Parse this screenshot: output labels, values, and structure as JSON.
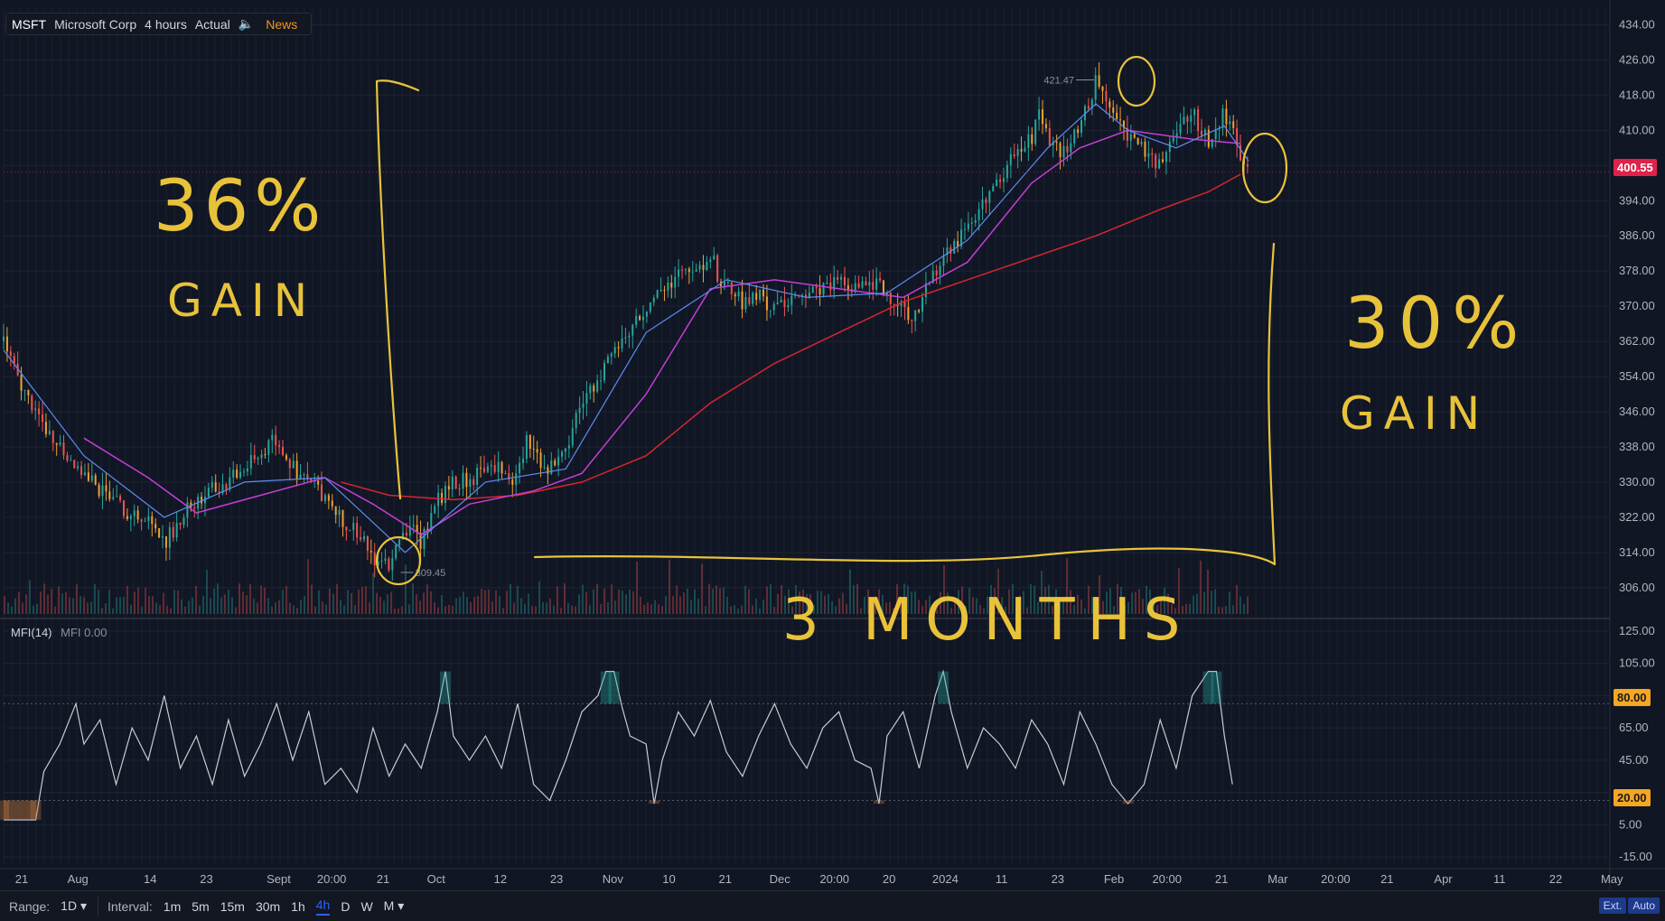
{
  "header": {
    "symbol": "MSFT",
    "company": "Microsoft Corp",
    "interval": "4 hours",
    "mode": "Actual",
    "news": "News"
  },
  "indicator": {
    "name": "MFI(14)",
    "value_label": "MFI 0.00"
  },
  "price_tags": {
    "last": "400.55",
    "mfi_upper": "80.00",
    "mfi_lower": "20.00"
  },
  "annotations_text": {
    "left_pct": "36%",
    "left_gain": "GAIN",
    "right_pct": "30%",
    "right_gain": "GAIN",
    "duration": "3 MONTHS"
  },
  "bottom_bar": {
    "range_label": "Range:",
    "range_value": "1D",
    "interval_label": "Interval:",
    "intervals": [
      "1m",
      "5m",
      "15m",
      "30m",
      "1h",
      "4h",
      "D",
      "W",
      "M"
    ],
    "active_interval": "4h",
    "ext": "Ext.",
    "auto": "Auto"
  },
  "colors": {
    "background": "#111624",
    "grid": "#1e2433",
    "ma_fast": "#5b8def",
    "ma_mid": "#c43fd6",
    "ma_slow": "#d7262f",
    "annotation": "#e8c33a",
    "last_price": "#e0224b",
    "mfi_line": "#c9ccd3",
    "mfi_tag": "#f5a623"
  },
  "chart_data": [
    {
      "type": "line",
      "title": "",
      "series_label": "MSFT 4 hours (candlesticks)",
      "y_ticks": [
        434,
        426,
        418,
        410,
        402,
        394,
        386,
        378,
        370,
        362,
        354,
        346,
        338,
        330,
        322,
        314,
        306
      ],
      "y_tick_labels": [
        "434.00",
        "426.00",
        "418.00",
        "410.00",
        "",
        "394.00",
        "386.00",
        "378.00",
        "370.00",
        "362.00",
        "354.00",
        "346.00",
        "338.00",
        "330.00",
        "322.00",
        "314.00",
        "306.00"
      ],
      "ylim": [
        300,
        438
      ],
      "x_tick_labels": [
        "21",
        "Aug",
        "14",
        "23",
        "Sept",
        "20:00",
        "21",
        "Oct",
        "12",
        "23",
        "Nov",
        "10",
        "21",
        "Dec",
        "20:00",
        "20",
        "2024",
        "11",
        "23",
        "Feb",
        "20:00",
        "21",
        "Mar",
        "20:00",
        "21",
        "Apr",
        "11",
        "22",
        "May"
      ],
      "x_tick_pos": [
        0,
        0.035,
        0.08,
        0.115,
        0.16,
        0.193,
        0.225,
        0.258,
        0.298,
        0.333,
        0.368,
        0.403,
        0.438,
        0.472,
        0.506,
        0.54,
        0.575,
        0.61,
        0.645,
        0.68,
        0.713,
        0.747,
        0.782,
        0.818,
        0.85,
        0.885,
        0.92,
        0.955,
        0.99
      ],
      "price_path": [
        [
          0.0,
          362
        ],
        [
          0.01,
          352
        ],
        [
          0.02,
          346
        ],
        [
          0.03,
          340
        ],
        [
          0.04,
          336
        ],
        [
          0.05,
          332
        ],
        [
          0.06,
          328
        ],
        [
          0.07,
          325
        ],
        [
          0.08,
          323
        ],
        [
          0.09,
          321
        ],
        [
          0.1,
          316
        ],
        [
          0.11,
          322
        ],
        [
          0.12,
          326
        ],
        [
          0.13,
          328
        ],
        [
          0.14,
          330
        ],
        [
          0.15,
          333
        ],
        [
          0.16,
          336
        ],
        [
          0.17,
          340
        ],
        [
          0.18,
          333
        ],
        [
          0.19,
          330
        ],
        [
          0.2,
          327
        ],
        [
          0.21,
          322
        ],
        [
          0.22,
          318
        ],
        [
          0.23,
          313
        ],
        [
          0.235,
          311
        ],
        [
          0.24,
          312
        ],
        [
          0.25,
          318
        ],
        [
          0.255,
          322
        ],
        [
          0.26,
          316
        ],
        [
          0.265,
          322
        ],
        [
          0.27,
          326
        ],
        [
          0.28,
          330
        ],
        [
          0.29,
          331
        ],
        [
          0.3,
          332
        ],
        [
          0.31,
          333
        ],
        [
          0.32,
          330
        ],
        [
          0.325,
          340
        ],
        [
          0.33,
          337
        ],
        [
          0.34,
          333
        ],
        [
          0.35,
          336
        ],
        [
          0.355,
          344
        ],
        [
          0.36,
          348
        ],
        [
          0.37,
          354
        ],
        [
          0.38,
          360
        ],
        [
          0.39,
          364
        ],
        [
          0.4,
          370
        ],
        [
          0.41,
          374
        ],
        [
          0.42,
          377
        ],
        [
          0.43,
          378
        ],
        [
          0.44,
          382
        ],
        [
          0.445,
          377
        ],
        [
          0.45,
          374
        ],
        [
          0.46,
          371
        ],
        [
          0.47,
          372
        ],
        [
          0.48,
          370
        ],
        [
          0.49,
          371
        ],
        [
          0.5,
          373
        ],
        [
          0.51,
          374
        ],
        [
          0.52,
          375
        ],
        [
          0.53,
          374
        ],
        [
          0.54,
          376
        ],
        [
          0.55,
          373
        ],
        [
          0.56,
          370
        ],
        [
          0.565,
          368
        ],
        [
          0.57,
          370
        ],
        [
          0.58,
          378
        ],
        [
          0.59,
          384
        ],
        [
          0.6,
          388
        ],
        [
          0.61,
          394
        ],
        [
          0.62,
          398
        ],
        [
          0.63,
          405
        ],
        [
          0.64,
          408
        ],
        [
          0.645,
          416
        ],
        [
          0.65,
          408
        ],
        [
          0.66,
          405
        ],
        [
          0.67,
          410
        ],
        [
          0.675,
          416
        ],
        [
          0.68,
          421
        ],
        [
          0.69,
          414
        ],
        [
          0.7,
          409
        ],
        [
          0.71,
          405
        ],
        [
          0.72,
          402
        ],
        [
          0.73,
          410
        ],
        [
          0.74,
          414
        ],
        [
          0.745,
          410
        ],
        [
          0.75,
          407
        ],
        [
          0.755,
          411
        ],
        [
          0.76,
          414
        ],
        [
          0.765,
          410
        ],
        [
          0.77,
          404
        ],
        [
          0.775,
          401
        ]
      ],
      "ma_fast": [
        [
          0.0,
          360
        ],
        [
          0.05,
          336
        ],
        [
          0.1,
          322
        ],
        [
          0.15,
          330
        ],
        [
          0.2,
          331
        ],
        [
          0.25,
          314
        ],
        [
          0.3,
          330
        ],
        [
          0.35,
          333
        ],
        [
          0.4,
          364
        ],
        [
          0.45,
          376
        ],
        [
          0.5,
          372
        ],
        [
          0.55,
          373
        ],
        [
          0.6,
          385
        ],
        [
          0.65,
          406
        ],
        [
          0.68,
          416
        ],
        [
          0.7,
          410
        ],
        [
          0.73,
          406
        ],
        [
          0.76,
          411
        ],
        [
          0.775,
          403
        ]
      ],
      "ma_mid": [
        [
          0.05,
          340
        ],
        [
          0.09,
          331
        ],
        [
          0.12,
          323
        ],
        [
          0.16,
          327
        ],
        [
          0.2,
          331
        ],
        [
          0.23,
          325
        ],
        [
          0.26,
          318
        ],
        [
          0.29,
          325
        ],
        [
          0.33,
          328
        ],
        [
          0.36,
          332
        ],
        [
          0.4,
          350
        ],
        [
          0.44,
          374
        ],
        [
          0.48,
          376
        ],
        [
          0.52,
          374
        ],
        [
          0.56,
          372
        ],
        [
          0.6,
          380
        ],
        [
          0.64,
          398
        ],
        [
          0.67,
          406
        ],
        [
          0.7,
          410
        ],
        [
          0.74,
          408
        ],
        [
          0.77,
          407
        ]
      ],
      "ma_slow": [
        [
          0.21,
          330
        ],
        [
          0.24,
          327
        ],
        [
          0.28,
          326
        ],
        [
          0.32,
          327
        ],
        [
          0.36,
          330
        ],
        [
          0.4,
          336
        ],
        [
          0.44,
          348
        ],
        [
          0.48,
          357
        ],
        [
          0.52,
          364
        ],
        [
          0.56,
          371
        ],
        [
          0.6,
          376
        ],
        [
          0.64,
          381
        ],
        [
          0.68,
          386
        ],
        [
          0.72,
          392
        ],
        [
          0.75,
          396
        ],
        [
          0.77,
          400
        ]
      ],
      "labels": [
        {
          "text": "421.47",
          "x": 0.68,
          "y": 421.47
        },
        {
          "text": "309.45",
          "x": 0.245,
          "y": 309.45
        }
      ],
      "last_price": 400.55
    },
    {
      "type": "line",
      "title": "",
      "series_label": "MFI(14)",
      "y_ticks": [
        125,
        105,
        85,
        65,
        45,
        25,
        5,
        -15
      ],
      "y_tick_labels": [
        "125.00",
        "105.00",
        "",
        "65.00",
        "45.00",
        "",
        "5.00",
        "-15.00"
      ],
      "ylim": [
        -20,
        130
      ],
      "bands": [
        20,
        80
      ],
      "values": [
        [
          0.0,
          8
        ],
        [
          0.02,
          8
        ],
        [
          0.025,
          38
        ],
        [
          0.035,
          55
        ],
        [
          0.045,
          80
        ],
        [
          0.05,
          55
        ],
        [
          0.06,
          70
        ],
        [
          0.07,
          30
        ],
        [
          0.08,
          65
        ],
        [
          0.09,
          45
        ],
        [
          0.1,
          85
        ],
        [
          0.11,
          40
        ],
        [
          0.12,
          60
        ],
        [
          0.13,
          30
        ],
        [
          0.14,
          70
        ],
        [
          0.15,
          35
        ],
        [
          0.16,
          55
        ],
        [
          0.17,
          80
        ],
        [
          0.18,
          45
        ],
        [
          0.19,
          75
        ],
        [
          0.2,
          30
        ],
        [
          0.21,
          40
        ],
        [
          0.22,
          25
        ],
        [
          0.23,
          65
        ],
        [
          0.24,
          35
        ],
        [
          0.25,
          55
        ],
        [
          0.26,
          40
        ],
        [
          0.27,
          75
        ],
        [
          0.275,
          100
        ],
        [
          0.28,
          60
        ],
        [
          0.29,
          45
        ],
        [
          0.3,
          60
        ],
        [
          0.31,
          40
        ],
        [
          0.32,
          80
        ],
        [
          0.33,
          30
        ],
        [
          0.34,
          20
        ],
        [
          0.35,
          45
        ],
        [
          0.36,
          75
        ],
        [
          0.37,
          85
        ],
        [
          0.375,
          100
        ],
        [
          0.38,
          100
        ],
        [
          0.385,
          78
        ],
        [
          0.39,
          60
        ],
        [
          0.4,
          55
        ],
        [
          0.405,
          18
        ],
        [
          0.41,
          45
        ],
        [
          0.42,
          75
        ],
        [
          0.43,
          60
        ],
        [
          0.44,
          82
        ],
        [
          0.45,
          50
        ],
        [
          0.46,
          35
        ],
        [
          0.47,
          60
        ],
        [
          0.48,
          80
        ],
        [
          0.49,
          55
        ],
        [
          0.5,
          40
        ],
        [
          0.51,
          65
        ],
        [
          0.52,
          75
        ],
        [
          0.53,
          45
        ],
        [
          0.54,
          40
        ],
        [
          0.545,
          18
        ],
        [
          0.55,
          60
        ],
        [
          0.56,
          75
        ],
        [
          0.57,
          40
        ],
        [
          0.58,
          85
        ],
        [
          0.585,
          100
        ],
        [
          0.59,
          75
        ],
        [
          0.6,
          40
        ],
        [
          0.61,
          65
        ],
        [
          0.62,
          55
        ],
        [
          0.63,
          40
        ],
        [
          0.64,
          70
        ],
        [
          0.65,
          55
        ],
        [
          0.66,
          30
        ],
        [
          0.67,
          75
        ],
        [
          0.68,
          55
        ],
        [
          0.69,
          30
        ],
        [
          0.7,
          18
        ],
        [
          0.71,
          30
        ],
        [
          0.72,
          70
        ],
        [
          0.73,
          40
        ],
        [
          0.74,
          85
        ],
        [
          0.75,
          100
        ],
        [
          0.755,
          100
        ],
        [
          0.76,
          60
        ],
        [
          0.765,
          30
        ]
      ],
      "last": 0.0
    }
  ]
}
